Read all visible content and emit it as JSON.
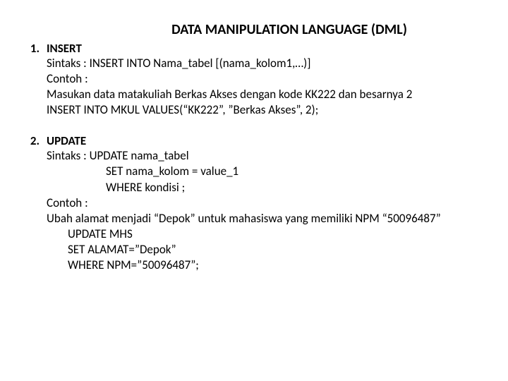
{
  "title": "DATA MANIPULATION LANGUAGE (DML)",
  "sections": [
    {
      "number": "1.",
      "heading": "INSERT",
      "lines": [
        {
          "text": "Sintaks : INSERT INTO Nama_tabel [(nama_kolom1,…)]",
          "indent": 0
        },
        {
          "text": "Contoh :",
          "indent": 0
        },
        {
          "text": "Masukan data matakuliah Berkas Akses dengan kode KK222  dan besarnya 2",
          "indent": 0
        },
        {
          "text": "INSERT INTO MKUL VALUES(“KK222”, ”Berkas Akses”, 2);",
          "indent": 0
        }
      ]
    },
    {
      "number": "2.",
      "heading": "UPDATE",
      "lines": [
        {
          "text": "Sintaks : UPDATE nama_tabel",
          "indent": 0
        },
        {
          "text": "SET  nama_kolom = value_1",
          "indent": 1
        },
        {
          "text": "WHERE kondisi ;",
          "indent": 1
        },
        {
          "text": "Contoh :",
          "indent": 0
        },
        {
          "text": "Ubah alamat menjadi “Depok” untuk mahasiswa yang memiliki NPM “50096487”",
          "indent": 0
        },
        {
          "text": "UPDATE MHS",
          "indent": 2
        },
        {
          "text": "SET ALAMAT=”Depok”",
          "indent": 2
        },
        {
          "text": "WHERE NPM=”50096487”;",
          "indent": 2
        }
      ]
    }
  ]
}
